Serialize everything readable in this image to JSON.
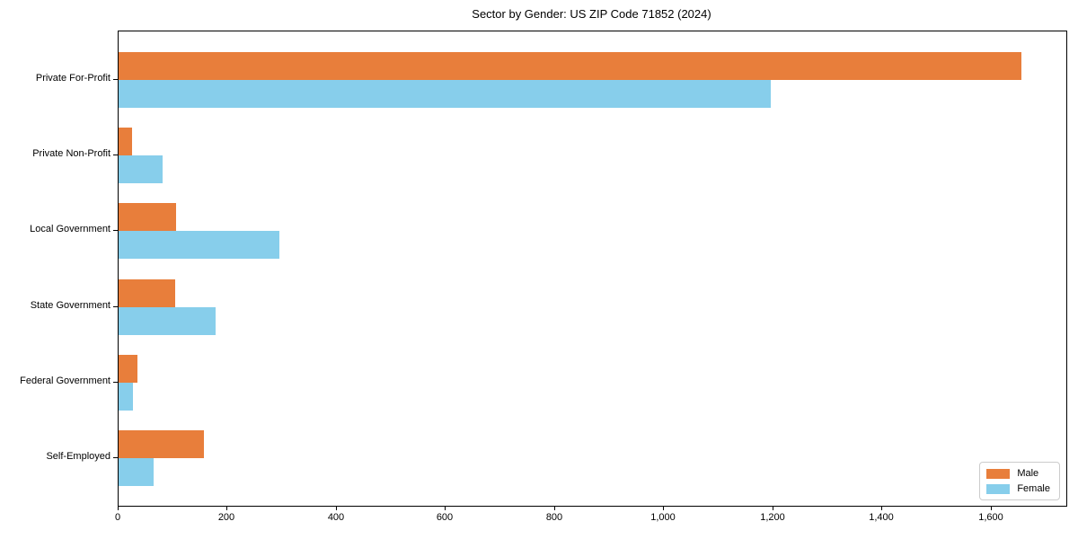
{
  "chart_data": {
    "type": "bar",
    "orientation": "horizontal",
    "title": "Sector by Gender: US ZIP Code 71852 (2024)",
    "categories": [
      "Private For-Profit",
      "Private Non-Profit",
      "Local Government",
      "State Government",
      "Federal Government",
      "Self-Employed"
    ],
    "series": [
      {
        "name": "Male",
        "color": "#e87e3b",
        "values": [
          1655,
          25,
          106,
          103,
          34,
          156
        ]
      },
      {
        "name": "Female",
        "color": "#87ceeb",
        "values": [
          1195,
          80,
          295,
          178,
          26,
          65
        ]
      }
    ],
    "xlim": [
      0,
      1737
    ],
    "x_ticks": [
      0,
      200,
      400,
      600,
      800,
      1000,
      1200,
      1400,
      1600
    ],
    "x_tick_labels": [
      "0",
      "200",
      "400",
      "600",
      "800",
      "1,000",
      "1,200",
      "1,400",
      "1,600"
    ],
    "xlabel": "",
    "ylabel": "",
    "grid": false,
    "legend_position": "lower right",
    "background_color": "#ffffff",
    "axis_color": "#000000"
  }
}
